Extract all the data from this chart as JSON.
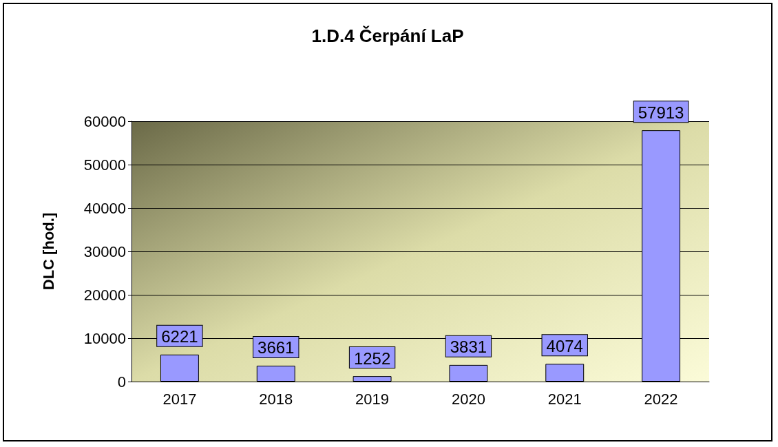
{
  "chart_data": {
    "type": "bar",
    "title": "1.D.4 Čerpání LaP",
    "ylabel": "DLC [hod.]",
    "categories": [
      "2017",
      "2018",
      "2019",
      "2020",
      "2021",
      "2022"
    ],
    "values": [
      6221,
      3661,
      1252,
      3831,
      4074,
      57913
    ],
    "color": "#9999ff",
    "ylim": [
      0,
      60000
    ],
    "yticks": [
      0,
      10000,
      20000,
      30000,
      40000,
      50000,
      60000
    ],
    "grid": "y",
    "data_labels": true
  }
}
